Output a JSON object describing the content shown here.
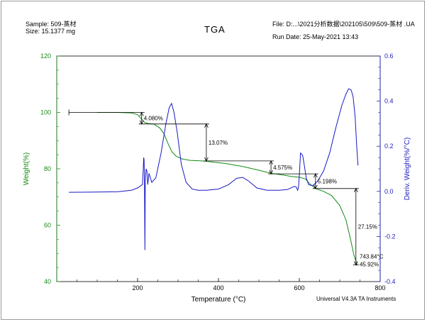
{
  "header": {
    "sample": "Sample: 509-蒸材",
    "size": "Size:  15.1377 mg",
    "file": "File: D:...\\2021分析数据\\202105\\509\\509-蒸材 .UA",
    "run_date": "Run Date: 25-May-2021 13:43",
    "title": "TGA"
  },
  "footer": "Universal V4.3A TA Instruments",
  "colors": {
    "weight": "#118a11",
    "deriv": "#1818c8",
    "axis_left": "#1a8a1a",
    "axis_right": "#2020c0"
  },
  "chart_data": {
    "type": "line",
    "title": "TGA",
    "xlabel": "Temperature (°C)",
    "ylabel": "Weight(%)",
    "y2label": "Deriv. Weight(%/°C)",
    "xlim": [
      0,
      800
    ],
    "ylim": [
      40,
      120
    ],
    "y2lim": [
      -0.4,
      0.6
    ],
    "xticks": [
      0,
      200,
      400,
      600,
      800
    ],
    "yticks": [
      40,
      60,
      80,
      100,
      120
    ],
    "y2ticks": [
      -0.4,
      -0.2,
      0.0,
      0.2,
      0.4,
      0.6
    ],
    "y2tick_labels": [
      "-0.4",
      "-0.2",
      "0.0",
      "0.2",
      "0.4",
      "0.6"
    ],
    "series": [
      {
        "name": "Weight",
        "axis": "left",
        "points": [
          [
            100,
            100
          ],
          [
            150,
            100
          ],
          [
            185,
            99.8
          ],
          [
            200,
            99.2
          ],
          [
            210,
            97.6
          ],
          [
            218,
            96.4
          ],
          [
            228,
            96.0
          ],
          [
            240,
            95.9
          ],
          [
            255,
            94.5
          ],
          [
            265,
            92.5
          ],
          [
            275,
            89.0
          ],
          [
            285,
            86.0
          ],
          [
            295,
            84.5
          ],
          [
            310,
            83.5
          ],
          [
            330,
            83.0
          ],
          [
            360,
            82.8
          ],
          [
            380,
            82.5
          ],
          [
            420,
            81.8
          ],
          [
            460,
            80.8
          ],
          [
            500,
            79.5
          ],
          [
            530,
            78.4
          ],
          [
            560,
            77.8
          ],
          [
            580,
            77.3
          ],
          [
            600,
            77.0
          ],
          [
            615,
            76.4
          ],
          [
            625,
            74.8
          ],
          [
            640,
            73.0
          ],
          [
            660,
            72.0
          ],
          [
            680,
            70.5
          ],
          [
            700,
            67.0
          ],
          [
            715,
            62.0
          ],
          [
            725,
            56.0
          ],
          [
            735,
            49.5
          ],
          [
            743,
            45.9
          ]
        ]
      },
      {
        "name": "Deriv. Weight",
        "axis": "right",
        "points": [
          [
            30,
            -0.004
          ],
          [
            100,
            -0.003
          ],
          [
            150,
            -0.002
          ],
          [
            185,
            0.005
          ],
          [
            200,
            0.015
          ],
          [
            212,
            0.03
          ],
          [
            214,
            0.1
          ],
          [
            215,
            0.15
          ],
          [
            216,
            0.14
          ],
          [
            217,
            0.04
          ],
          [
            218,
            -0.26
          ],
          [
            219,
            0.05
          ],
          [
            221,
            0.1
          ],
          [
            223,
            0.09
          ],
          [
            225,
            0.03
          ],
          [
            228,
            0.08
          ],
          [
            235,
            0.04
          ],
          [
            245,
            0.06
          ],
          [
            258,
            0.17
          ],
          [
            270,
            0.3
          ],
          [
            278,
            0.37
          ],
          [
            284,
            0.39
          ],
          [
            290,
            0.35
          ],
          [
            298,
            0.26
          ],
          [
            308,
            0.12
          ],
          [
            320,
            0.04
          ],
          [
            335,
            0.01
          ],
          [
            350,
            0.005
          ],
          [
            370,
            0.005
          ],
          [
            400,
            0.01
          ],
          [
            425,
            0.03
          ],
          [
            445,
            0.058
          ],
          [
            460,
            0.062
          ],
          [
            475,
            0.045
          ],
          [
            495,
            0.015
          ],
          [
            520,
            0.005
          ],
          [
            550,
            0.005
          ],
          [
            570,
            0.008
          ],
          [
            588,
            0.022
          ],
          [
            592,
            0.02
          ],
          [
            596,
            0.005
          ],
          [
            598,
            0.02
          ],
          [
            600,
            0.07
          ],
          [
            603,
            0.17
          ],
          [
            608,
            0.16
          ],
          [
            612,
            0.12
          ],
          [
            617,
            0.06
          ],
          [
            623,
            0.03
          ],
          [
            633,
            0.025
          ],
          [
            645,
            0.045
          ],
          [
            660,
            0.09
          ],
          [
            675,
            0.17
          ],
          [
            690,
            0.28
          ],
          [
            705,
            0.38
          ],
          [
            715,
            0.43
          ],
          [
            722,
            0.455
          ],
          [
            728,
            0.45
          ],
          [
            733,
            0.42
          ],
          [
            738,
            0.33
          ],
          [
            742,
            0.2
          ],
          [
            745,
            0.115
          ]
        ]
      }
    ],
    "annotations": [
      {
        "label": "4.080%",
        "x": 210,
        "y_top": 100,
        "y_bottom": 95.9
      },
      {
        "label": "13.07%",
        "x": 370,
        "y_top": 95.9,
        "y_bottom": 82.8
      },
      {
        "label": "4.575%",
        "x": 530,
        "y_top": 82.8,
        "y_bottom": 78.2
      },
      {
        "label": "5.198%",
        "x": 640,
        "y_top": 78.2,
        "y_bottom": 73.0
      },
      {
        "label": "27.15%",
        "x": 740,
        "y_top": 73.0,
        "y_bottom": 45.9
      }
    ],
    "marker": {
      "label1": "743.84°C",
      "label2": "45.92%",
      "x": 743.84,
      "y": 45.92
    }
  }
}
